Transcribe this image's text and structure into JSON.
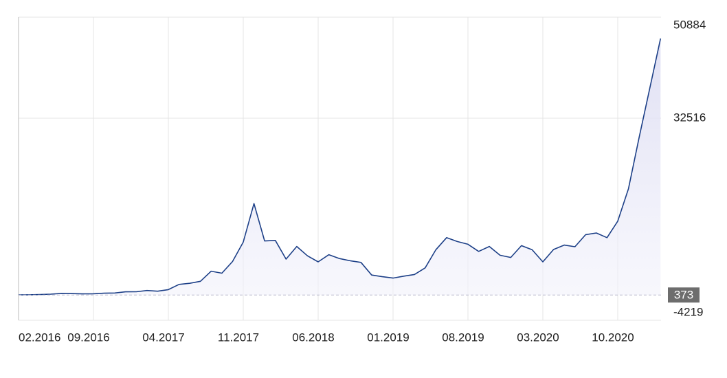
{
  "chart_data": {
    "type": "line",
    "x": [
      "02.2016",
      "03.2016",
      "04.2016",
      "05.2016",
      "06.2016",
      "07.2016",
      "08.2016",
      "09.2016",
      "10.2016",
      "11.2016",
      "12.2016",
      "01.2017",
      "02.2017",
      "03.2017",
      "04.2017",
      "05.2017",
      "06.2017",
      "07.2017",
      "08.2017",
      "09.2017",
      "10.2017",
      "11.2017",
      "12.2017",
      "01.2018",
      "02.2018",
      "03.2018",
      "04.2018",
      "05.2018",
      "06.2018",
      "07.2018",
      "08.2018",
      "09.2018",
      "10.2018",
      "11.2018",
      "12.2018",
      "01.2019",
      "02.2019",
      "03.2019",
      "04.2019",
      "05.2019",
      "06.2019",
      "07.2019",
      "08.2019",
      "09.2019",
      "10.2019",
      "11.2019",
      "12.2019",
      "01.2020",
      "02.2020",
      "03.2020",
      "04.2020",
      "05.2020",
      "06.2020",
      "07.2020",
      "08.2020",
      "09.2020",
      "10.2020",
      "11.2020",
      "12.2020",
      "01.2021",
      "02.2021"
    ],
    "series": [
      {
        "color": "#1c3f87",
        "values": [
          400,
          415,
          450,
          530,
          670,
          625,
          575,
          610,
          700,
          740,
          960,
          970,
          1190,
          1070,
          1350,
          2300,
          2500,
          2870,
          4700,
          4340,
          6470,
          10000,
          17000,
          10200,
          10300,
          6900,
          9200,
          7500,
          6400,
          7700,
          7000,
          6600,
          6300,
          4000,
          3700,
          3450,
          3800,
          4100,
          5300,
          8600,
          10800,
          10100,
          9600,
          8300,
          9200,
          7600,
          7200,
          9350,
          8600,
          6400,
          8650,
          9450,
          9150,
          11350,
          11650,
          10800,
          13800,
          19700,
          29000,
          38000,
          47000
        ]
      }
    ],
    "ylim": [
      -4219,
      50884
    ],
    "yticks": [
      50884,
      32516,
      -4219
    ],
    "xticks": [
      "02.2016",
      "09.2016",
      "04.2017",
      "11.2017",
      "06.2018",
      "01.2019",
      "08.2019",
      "03.2020",
      "10.2020"
    ],
    "baseline": 373,
    "grid": true
  }
}
